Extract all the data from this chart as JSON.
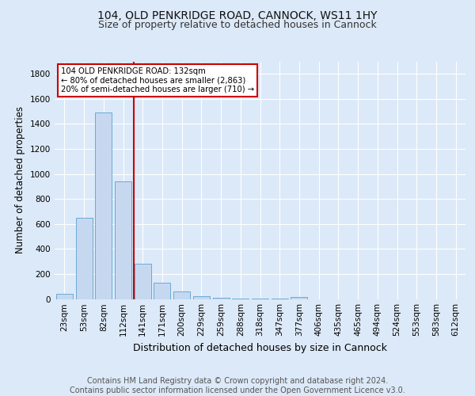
{
  "title1": "104, OLD PENKRIDGE ROAD, CANNOCK, WS11 1HY",
  "title2": "Size of property relative to detached houses in Cannock",
  "xlabel": "Distribution of detached houses by size in Cannock",
  "ylabel": "Number of detached properties",
  "footer1": "Contains HM Land Registry data © Crown copyright and database right 2024.",
  "footer2": "Contains public sector information licensed under the Open Government Licence v3.0.",
  "bin_labels": [
    "23sqm",
    "53sqm",
    "82sqm",
    "112sqm",
    "141sqm",
    "171sqm",
    "200sqm",
    "229sqm",
    "259sqm",
    "288sqm",
    "318sqm",
    "347sqm",
    "377sqm",
    "406sqm",
    "435sqm",
    "465sqm",
    "494sqm",
    "524sqm",
    "553sqm",
    "583sqm",
    "612sqm"
  ],
  "bar_values": [
    40,
    650,
    1490,
    940,
    285,
    130,
    63,
    22,
    10,
    5,
    3,
    2,
    18,
    0,
    0,
    0,
    0,
    0,
    0,
    0,
    0
  ],
  "bar_color": "#c5d8f0",
  "bar_edgecolor": "#6aaad4",
  "vline_x": 3.55,
  "vline_color": "#cc0000",
  "annotation_text": "104 OLD PENKRIDGE ROAD: 132sqm\n← 80% of detached houses are smaller (2,863)\n20% of semi-detached houses are larger (710) →",
  "annotation_box_color": "#ffffff",
  "annotation_box_edgecolor": "#cc0000",
  "ylim": [
    0,
    1900
  ],
  "yticks": [
    0,
    200,
    400,
    600,
    800,
    1000,
    1200,
    1400,
    1600,
    1800
  ],
  "bg_color": "#dce9f8",
  "plot_bg_color": "#dce9f8",
  "grid_color": "#ffffff",
  "title1_fontsize": 10,
  "title2_fontsize": 9,
  "xlabel_fontsize": 9,
  "ylabel_fontsize": 8.5,
  "tick_fontsize": 7.5,
  "footer_fontsize": 7
}
